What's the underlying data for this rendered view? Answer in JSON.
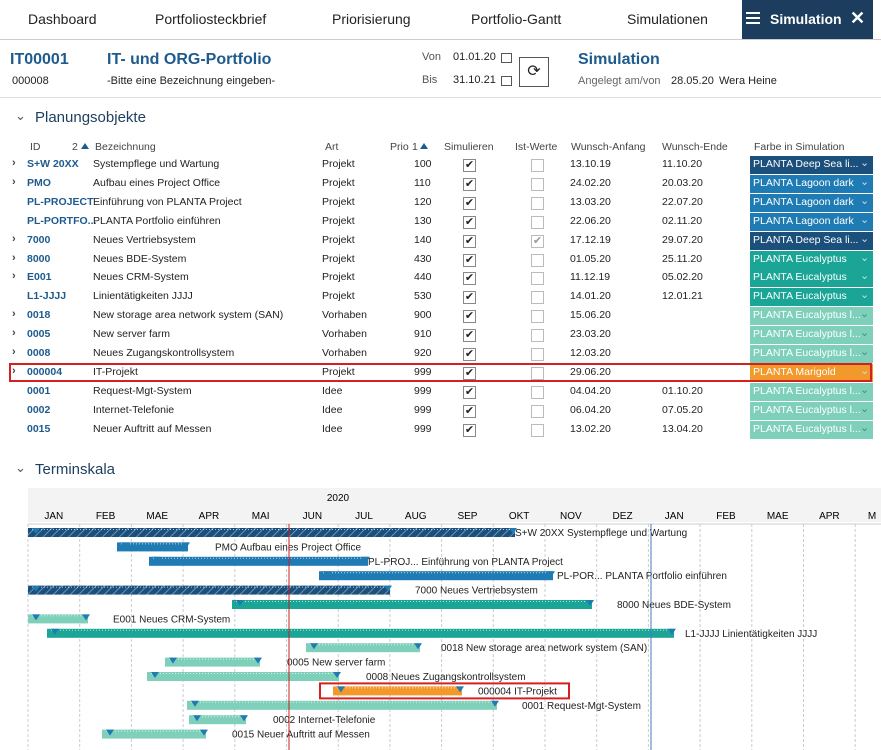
{
  "tabs": [
    "Dashboard",
    "Portfoliosteckbrief",
    "Priorisierung",
    "Portfolio-Gantt",
    "Simulationen",
    "Simulation"
  ],
  "header": {
    "id": "IT00001",
    "sub_id": "000008",
    "title": "IT- und ORG-Portfolio",
    "subtitle": "-Bitte eine Bezeichnung eingeben-",
    "from_label": "Von",
    "from": "01.01.20",
    "to_label": "Bis",
    "to": "31.10.21",
    "mode": "Simulation",
    "created_label": "Angelegt am/von",
    "created": "28.05.20",
    "author": "Wera Heine"
  },
  "planning": {
    "title": "Planungsobjekte",
    "columns": {
      "id": "ID",
      "id_sort": "2",
      "name": "Bezeichnung",
      "art": "Art",
      "prio": "Prio",
      "prio_sort": "1",
      "simulate": "Simulieren",
      "actual": "Ist-Werte",
      "start": "Wunsch-Anfang",
      "end": "Wunsch-Ende",
      "color": "Farbe in Simulation"
    },
    "rows": [
      {
        "expandable": true,
        "id": "S+W 20XX",
        "name": "Systempflege und Wartung",
        "art": "Projekt",
        "prio": "100",
        "simulate": true,
        "actual": false,
        "start": "13.10.19",
        "end": "11.10.20",
        "color_label": "PLANTA Deep Sea li...",
        "color": "#1b4f7c"
      },
      {
        "expandable": true,
        "id": "PMO",
        "name": "Aufbau eines Project Office",
        "art": "Projekt",
        "prio": "110",
        "simulate": true,
        "actual": false,
        "start": "24.02.20",
        "end": "20.03.20",
        "color_label": "PLANTA Lagoon dark",
        "color": "#1f7bb3"
      },
      {
        "expandable": false,
        "id": "PL-PROJECT",
        "name": "Einführung von PLANTA Project",
        "art": "Projekt",
        "prio": "120",
        "simulate": true,
        "actual": false,
        "start": "13.03.20",
        "end": "22.07.20",
        "color_label": "PLANTA Lagoon dark",
        "color": "#1f7bb3"
      },
      {
        "expandable": false,
        "id": "PL-PORTFO...",
        "name": "PLANTA Portfolio einführen",
        "art": "Projekt",
        "prio": "130",
        "simulate": true,
        "actual": false,
        "start": "22.06.20",
        "end": "02.11.20",
        "color_label": "PLANTA Lagoon dark",
        "color": "#1f7bb3"
      },
      {
        "expandable": true,
        "id": "7000",
        "name": "Neues Vertriebsystem",
        "art": "Projekt",
        "prio": "140",
        "simulate": true,
        "actual": true,
        "start": "17.12.19",
        "end": "29.07.20",
        "color_label": "PLANTA Deep Sea li...",
        "color": "#1b4f7c"
      },
      {
        "expandable": true,
        "id": "8000",
        "name": "Neues BDE-System",
        "art": "Projekt",
        "prio": "430",
        "simulate": true,
        "actual": false,
        "start": "01.05.20",
        "end": "25.11.20",
        "color_label": "PLANTA Eucalyptus",
        "color": "#1aa596"
      },
      {
        "expandable": true,
        "id": "E001",
        "name": "Neues CRM-System",
        "art": "Projekt",
        "prio": "440",
        "simulate": true,
        "actual": false,
        "start": "11.12.19",
        "end": "05.02.20",
        "color_label": "PLANTA Eucalyptus",
        "color": "#1aa596"
      },
      {
        "expandable": false,
        "id": "L1-JJJJ",
        "name": "Linientätigkeiten JJJJ",
        "art": "Projekt",
        "prio": "530",
        "simulate": true,
        "actual": false,
        "start": "14.01.20",
        "end": "12.01.21",
        "color_label": "PLANTA Eucalyptus",
        "color": "#1aa596"
      },
      {
        "expandable": true,
        "id": "0018",
        "name": "New storage area network system (SAN)",
        "art": "Vorhaben",
        "prio": "900",
        "simulate": true,
        "actual": false,
        "start": "15.06.20",
        "end": null,
        "color_label": "PLANTA Eucalyptus l...",
        "color": "#7fd0ba"
      },
      {
        "expandable": true,
        "id": "0005",
        "name": "New server farm",
        "art": "Vorhaben",
        "prio": "910",
        "simulate": true,
        "actual": false,
        "start": "23.03.20",
        "end": null,
        "color_label": "PLANTA Eucalyptus l...",
        "color": "#7fd0ba"
      },
      {
        "expandable": true,
        "id": "0008",
        "name": "Neues Zugangskontrollsystem",
        "art": "Vorhaben",
        "prio": "920",
        "simulate": true,
        "actual": false,
        "start": "12.03.20",
        "end": null,
        "color_label": "PLANTA Eucalyptus l...",
        "color": "#7fd0ba"
      },
      {
        "expandable": true,
        "id": "000004",
        "name": "IT-Projekt",
        "art": "Projekt",
        "prio": "999",
        "simulate": true,
        "actual": false,
        "start": "29.06.20",
        "end": null,
        "color_label": "PLANTA Marigold",
        "color": "#f2992b"
      },
      {
        "expandable": false,
        "id": "0001",
        "name": "Request-Mgt-System",
        "art": "Idee",
        "prio": "999",
        "simulate": true,
        "actual": false,
        "start": "04.04.20",
        "end": "01.10.20",
        "color_label": "PLANTA Eucalyptus l...",
        "color": "#7fd0ba"
      },
      {
        "expandable": false,
        "id": "0002",
        "name": "Internet-Telefonie",
        "art": "Idee",
        "prio": "999",
        "simulate": true,
        "actual": false,
        "start": "06.04.20",
        "end": "07.05.20",
        "color_label": "PLANTA Eucalyptus l...",
        "color": "#7fd0ba"
      },
      {
        "expandable": false,
        "id": "0015",
        "name": "Neuer Auftritt auf Messen",
        "art": "Idee",
        "prio": "999",
        "simulate": true,
        "actual": false,
        "start": "13.02.20",
        "end": "13.04.20",
        "color_label": "PLANTA Eucalyptus l...",
        "color": "#7fd0ba"
      }
    ]
  },
  "timeline": {
    "title": "Terminskala",
    "year": "2020",
    "months": [
      "JAN",
      "FEB",
      "MAE",
      "APR",
      "MAI",
      "JUN",
      "JUL",
      "AUG",
      "SEP",
      "OKT",
      "NOV",
      "DEZ",
      "JAN",
      "FEB",
      "MAE",
      "APR",
      "M"
    ],
    "bars": [
      "S+W 20XX Systempflege und Wartung",
      "PMO Aufbau eines Project Office",
      "PL-PROJ... Einführung von PLANTA Project",
      "PL-POR... PLANTA Portfolio einführen",
      "7000 Neues Vertriebsystem",
      "8000 Neues BDE-System",
      "E001 Neues CRM-System",
      "L1-JJJJ Linientätigkeiten JJJJ",
      "0018 New storage area network system (SAN)",
      "0005 New server farm",
      "0008 Neues Zugangskontrollsystem",
      "000004 IT-Projekt",
      "0001 Request-Mgt-System",
      "0002 Internet-Telefonie",
      "0015 Neuer Auftritt auf Messen"
    ]
  }
}
